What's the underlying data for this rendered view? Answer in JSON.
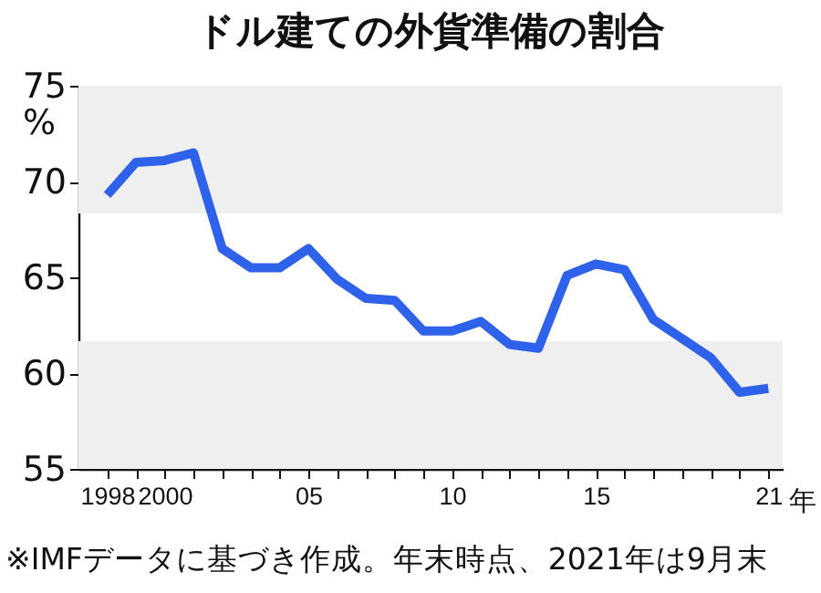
{
  "chart_data": {
    "type": "line",
    "title": "ドル建ての外貨準備の割合",
    "ylabel": "%",
    "x": [
      1998,
      1999,
      2000,
      2001,
      2002,
      2003,
      2004,
      2005,
      2006,
      2007,
      2008,
      2009,
      2010,
      2011,
      2012,
      2013,
      2014,
      2015,
      2016,
      2017,
      2018,
      2019,
      2020,
      2021
    ],
    "series": [
      {
        "color": "#2f62ea",
        "values": [
          69.3,
          71.0,
          71.1,
          71.5,
          66.5,
          65.5,
          65.5,
          66.5,
          64.9,
          63.9,
          63.8,
          62.2,
          62.2,
          62.7,
          61.5,
          61.3,
          65.1,
          65.7,
          65.4,
          62.8,
          61.8,
          60.8,
          59.0,
          59.2
        ]
      }
    ],
    "xlim": [
      1997,
      2021.5
    ],
    "xticks": [
      1998,
      {
        "value": 1999,
        "label": null
      },
      2000,
      {
        "value": 2001,
        "label": null
      },
      {
        "value": 2002,
        "label": null
      },
      {
        "value": 2003,
        "label": null
      },
      {
        "value": 2004,
        "label": null
      },
      {
        "value": 2005,
        "label": "05"
      },
      {
        "value": 2006,
        "label": null
      },
      {
        "value": 2007,
        "label": null
      },
      {
        "value": 2008,
        "label": null
      },
      {
        "value": 2009,
        "label": null
      },
      {
        "value": 2010,
        "label": "10"
      },
      {
        "value": 2011,
        "label": null
      },
      {
        "value": 2012,
        "label": null
      },
      {
        "value": 2013,
        "label": null
      },
      {
        "value": 2014,
        "label": null
      },
      {
        "value": 2015,
        "label": "15"
      },
      {
        "value": 2016,
        "label": null
      },
      {
        "value": 2017,
        "label": null
      },
      {
        "value": 2018,
        "label": null
      },
      {
        "value": 2019,
        "label": null
      },
      {
        "value": 2020,
        "label": null
      },
      {
        "value": 2021,
        "label": "21"
      }
    ],
    "xlabel": "年",
    "ylim": [
      55,
      75
    ],
    "yticks": [
      55,
      60,
      65,
      70,
      75
    ],
    "bands": [
      {
        "axis": "y",
        "from": 55,
        "to": 61.67,
        "color": "#efefef"
      },
      {
        "axis": "y",
        "from": 68.33,
        "to": 75,
        "color": "#efefef"
      }
    ],
    "grid": false,
    "marker": "none",
    "line_style": "solid",
    "annotations": [
      "※IMFデータに基づき作成。年末時点、2021年は9月末"
    ]
  }
}
